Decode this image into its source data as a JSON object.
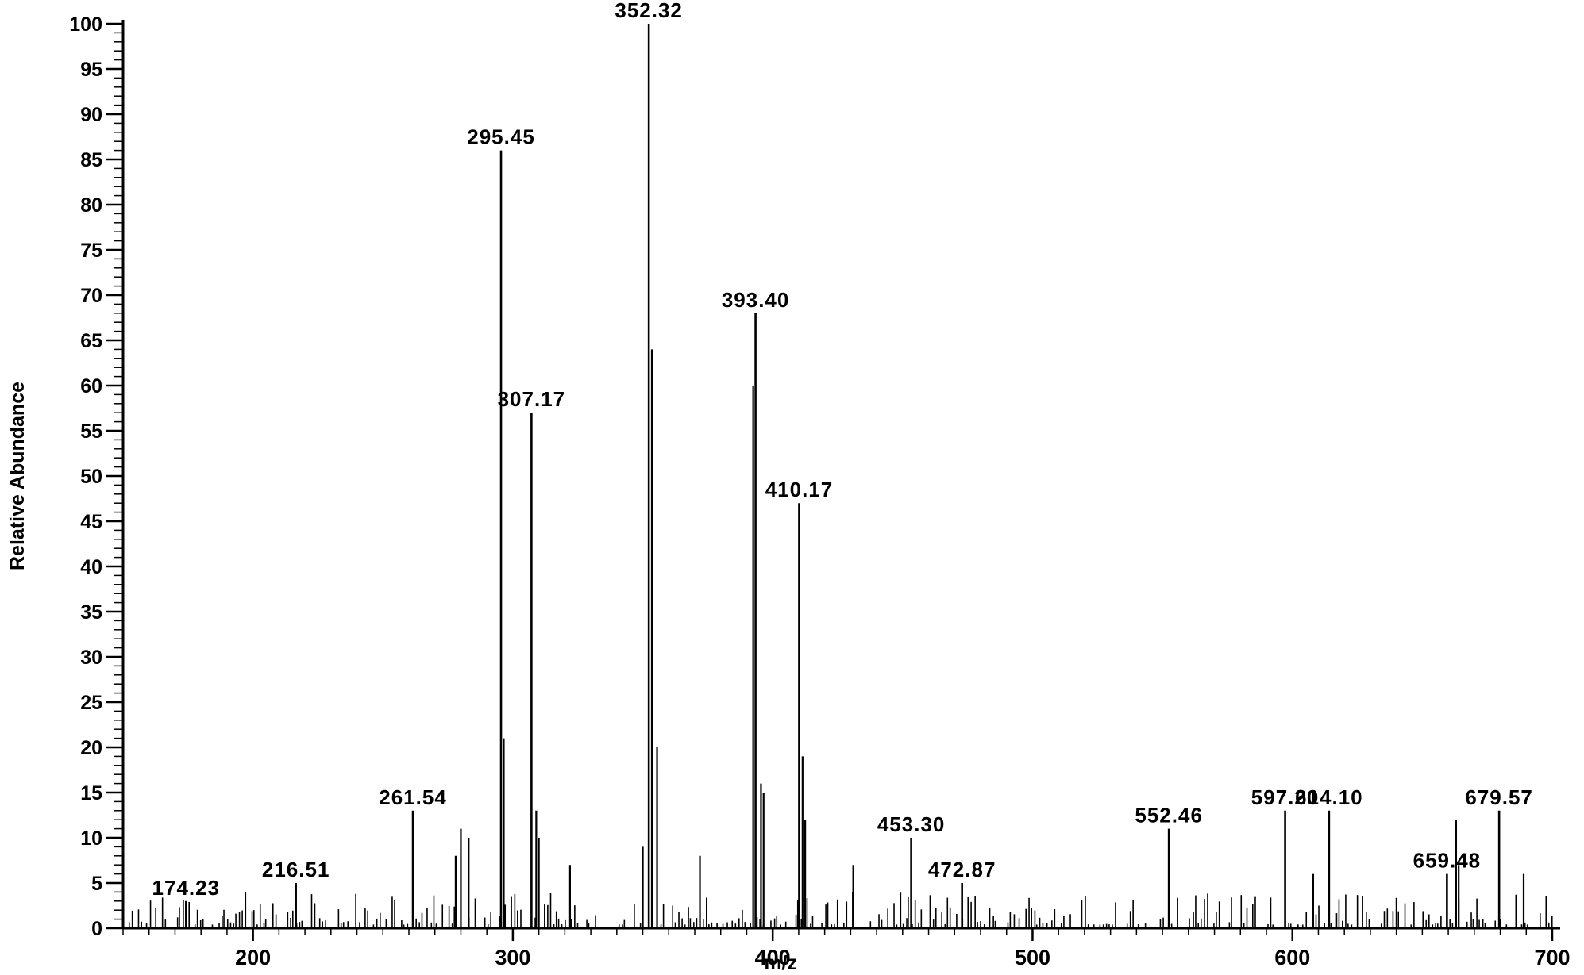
{
  "chart_data": {
    "type": "bar",
    "xlabel": "m/z",
    "ylabel": "Relative Abundance",
    "xlim": [
      150,
      700
    ],
    "ylim": [
      0,
      100
    ],
    "x_ticks": [
      "200",
      "300",
      "400",
      "500",
      "600",
      "700"
    ],
    "y_ticks": [
      "0",
      "5",
      "10",
      "15",
      "20",
      "25",
      "30",
      "35",
      "40",
      "45",
      "50",
      "55",
      "60",
      "65",
      "70",
      "75",
      "80",
      "85",
      "90",
      "95",
      "100"
    ],
    "labeled_peaks": [
      {
        "mz": 174.23,
        "label": "174.23",
        "value": 3
      },
      {
        "mz": 216.51,
        "label": "216.51",
        "value": 5
      },
      {
        "mz": 261.54,
        "label": "261.54",
        "value": 13
      },
      {
        "mz": 295.45,
        "label": "295.45",
        "value": 86
      },
      {
        "mz": 307.17,
        "label": "307.17",
        "value": 57
      },
      {
        "mz": 352.32,
        "label": "352.32",
        "value": 100
      },
      {
        "mz": 393.4,
        "label": "393.40",
        "value": 68
      },
      {
        "mz": 410.17,
        "label": "410.17",
        "value": 47
      },
      {
        "mz": 453.3,
        "label": "453.30",
        "value": 10
      },
      {
        "mz": 472.87,
        "label": "472.87",
        "value": 5
      },
      {
        "mz": 552.46,
        "label": "552.46",
        "value": 11
      },
      {
        "mz": 597.2,
        "label": "597.20",
        "value": 13
      },
      {
        "mz": 614.1,
        "label": "614.10",
        "value": 13
      },
      {
        "mz": 659.48,
        "label": "659.48",
        "value": 6
      },
      {
        "mz": 679.57,
        "label": "679.57",
        "value": 13
      }
    ],
    "minor_peaks": [
      {
        "mz": 296.5,
        "value": 21
      },
      {
        "mz": 309,
        "value": 13
      },
      {
        "mz": 310,
        "value": 10
      },
      {
        "mz": 353.5,
        "value": 64
      },
      {
        "mz": 355.5,
        "value": 20
      },
      {
        "mz": 392.5,
        "value": 60
      },
      {
        "mz": 395.5,
        "value": 16
      },
      {
        "mz": 396.5,
        "value": 15
      },
      {
        "mz": 411.5,
        "value": 19
      },
      {
        "mz": 412.5,
        "value": 12
      },
      {
        "mz": 280,
        "value": 11
      },
      {
        "mz": 283,
        "value": 10
      },
      {
        "mz": 278,
        "value": 8
      },
      {
        "mz": 350,
        "value": 9
      },
      {
        "mz": 372,
        "value": 8
      },
      {
        "mz": 322,
        "value": 7
      },
      {
        "mz": 431,
        "value": 7
      },
      {
        "mz": 663,
        "value": 12
      },
      {
        "mz": 664,
        "value": 7
      },
      {
        "mz": 608,
        "value": 6
      },
      {
        "mz": 689,
        "value": 6
      }
    ]
  }
}
